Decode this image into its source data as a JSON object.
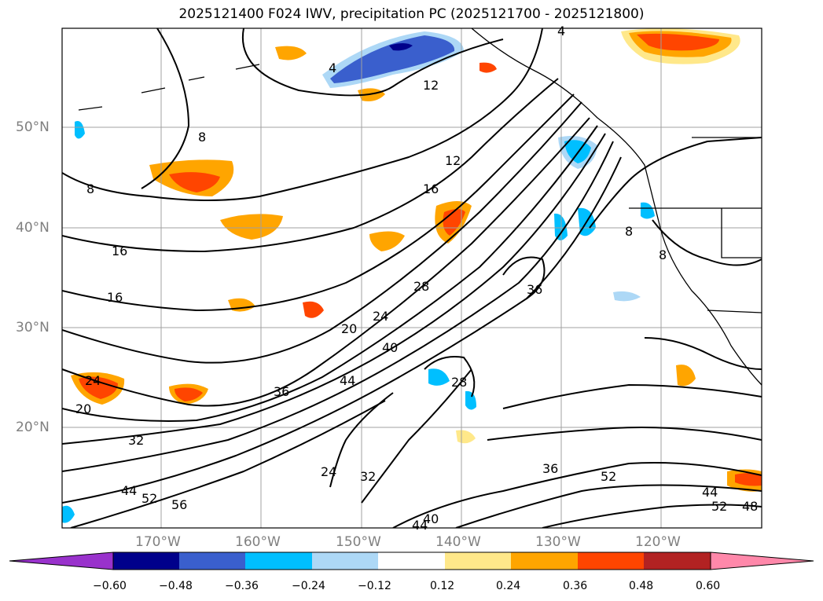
{
  "title": "2025121400 F024 IWV, precipitation PC (2025121700 - 2025121800)",
  "lat_labels": [
    "50°N",
    "40°N",
    "30°N",
    "20°N"
  ],
  "lon_labels": [
    "170°W",
    "160°W",
    "150°W",
    "140°W",
    "130°W",
    "120°W"
  ],
  "contour_labels": [
    "4",
    "4",
    "8",
    "8",
    "12",
    "12",
    "16",
    "16",
    "16",
    "20",
    "24",
    "28",
    "28",
    "36",
    "36",
    "40",
    "44",
    "52",
    "56",
    "24",
    "32",
    "32",
    "44",
    "36",
    "52",
    "44",
    "52",
    "48",
    "40",
    "44",
    "20",
    "24",
    "8",
    "8"
  ],
  "colorbar": {
    "ticks": [
      "−0.60",
      "−0.48",
      "−0.36",
      "−0.24",
      "−0.12",
      "0.12",
      "0.24",
      "0.36",
      "0.48",
      "0.60"
    ],
    "colors": [
      "#9932cc",
      "#00008b",
      "#3a5fcd",
      "#00bfff",
      "#add8f6",
      "#ffffff",
      "#ffe88a",
      "#ffa500",
      "#ff4500",
      "#b22222",
      "#ff88aa"
    ]
  }
}
